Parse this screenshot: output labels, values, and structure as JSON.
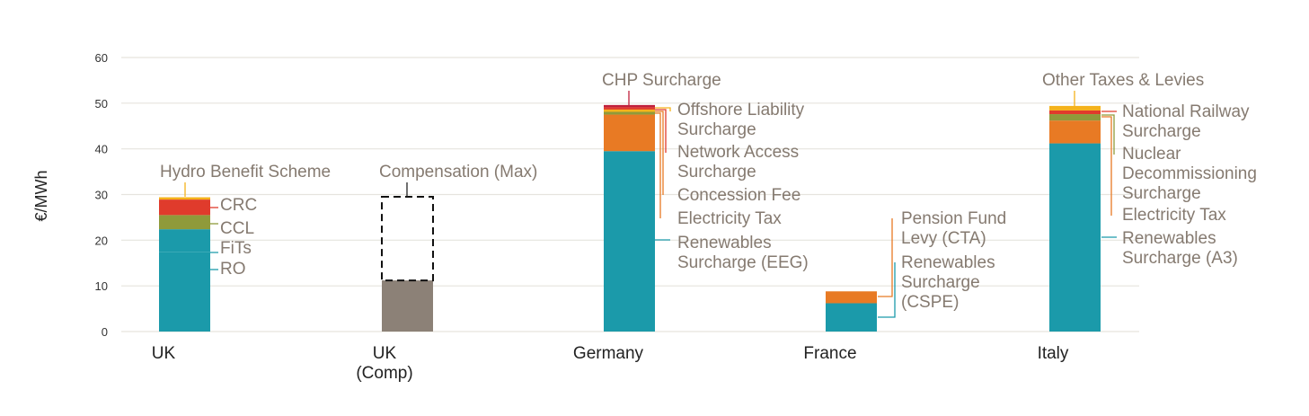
{
  "chart_data": {
    "type": "bar",
    "stacked": true,
    "ylabel": "€/MWh",
    "ylim": [
      0,
      60
    ],
    "yticks": [
      0,
      10,
      20,
      30,
      40,
      50,
      60
    ],
    "grid": true,
    "categories": [
      "UK",
      "UK\n(Comp)",
      "Germany",
      "France",
      "Italy"
    ],
    "colors": {
      "teal": "#1b9aaa",
      "orange": "#e87a24",
      "olive": "#8f9a3a",
      "red": "#e03b2c",
      "yellow": "#f5b21b",
      "gray": "#8c8177",
      "crimson": "#c0203c",
      "grid": "#e6e4de",
      "label": "#857a70"
    },
    "bars": [
      {
        "category": "UK",
        "segments": [
          {
            "name": "RO",
            "value": 17.4,
            "color": "teal"
          },
          {
            "name": "FiTs",
            "value": 5.0,
            "color": "teal"
          },
          {
            "name": "CCL",
            "value": 3.1,
            "color": "olive"
          },
          {
            "name": "CRC",
            "value": 3.4,
            "color": "red"
          },
          {
            "name": "Hydro Benefit Scheme",
            "value": 0.5,
            "color": "yellow"
          }
        ]
      },
      {
        "category": "UK\n(Comp)",
        "segments": [
          {
            "name": "",
            "value": 11.2,
            "color": "gray"
          }
        ],
        "dashed_box": {
          "name": "Compensation (Max)",
          "from": 11.2,
          "to": 29.5
        }
      },
      {
        "category": "Germany",
        "segments": [
          {
            "name": "Renewables Surcharge (EEG)",
            "value": 39.5,
            "color": "teal"
          },
          {
            "name": "Electricity Tax",
            "value": 8.0,
            "color": "orange"
          },
          {
            "name": "Concession Fee",
            "value": 0.6,
            "color": "olive"
          },
          {
            "name": "Network Access Surcharge",
            "value": 0.5,
            "color": "yellow"
          },
          {
            "name": "Offshore Liability Surcharge",
            "value": 0.5,
            "color": "red"
          },
          {
            "name": "CHP Surcharge",
            "value": 0.5,
            "color": "crimson"
          }
        ]
      },
      {
        "category": "France",
        "segments": [
          {
            "name": "Renewables Surcharge (CSPE)",
            "value": 6.2,
            "color": "teal"
          },
          {
            "name": "Pension Fund Levy (CTA)",
            "value": 2.6,
            "color": "orange"
          }
        ]
      },
      {
        "category": "Italy",
        "segments": [
          {
            "name": "Renewables Surcharge (A3)",
            "value": 41.2,
            "color": "teal"
          },
          {
            "name": "Electricity Tax",
            "value": 5.0,
            "color": "orange"
          },
          {
            "name": "Nuclear Decommissioning Surcharge",
            "value": 1.4,
            "color": "olive"
          },
          {
            "name": "National Railway Surcharge",
            "value": 0.8,
            "color": "red"
          },
          {
            "name": "Other Taxes & Levies",
            "value": 1.0,
            "color": "yellow"
          }
        ]
      }
    ],
    "annotations": [
      {
        "bar": 0,
        "lines": [
          "Hydro Benefit Scheme"
        ],
        "color": "yellow"
      },
      {
        "bar": 0,
        "lines": [
          "CRC"
        ],
        "color": "red"
      },
      {
        "bar": 0,
        "lines": [
          "CCL"
        ],
        "color": "olive"
      },
      {
        "bar": 0,
        "lines": [
          "FiTs"
        ],
        "color": "teal"
      },
      {
        "bar": 0,
        "lines": [
          "RO"
        ],
        "color": "teal"
      },
      {
        "bar": 1,
        "lines": [
          "Compensation (Max)"
        ],
        "color": "#222222"
      },
      {
        "bar": 2,
        "lines": [
          "CHP Surcharge"
        ],
        "color": "crimson"
      },
      {
        "bar": 2,
        "lines": [
          "Offshore Liability",
          "Surcharge"
        ],
        "color": "yellow"
      },
      {
        "bar": 2,
        "lines": [
          "Network Access",
          "Surcharge"
        ],
        "color": "red"
      },
      {
        "bar": 2,
        "lines": [
          "Concession Fee"
        ],
        "color": "orange"
      },
      {
        "bar": 2,
        "lines": [
          "Electricity Tax"
        ],
        "color": "orange"
      },
      {
        "bar": 2,
        "lines": [
          "Renewables",
          "Surcharge (EEG)"
        ],
        "color": "teal"
      },
      {
        "bar": 3,
        "lines": [
          "Pension Fund",
          "Levy (CTA)"
        ],
        "color": "orange"
      },
      {
        "bar": 3,
        "lines": [
          "Renewables",
          "Surcharge",
          "(CSPE)"
        ],
        "color": "teal"
      },
      {
        "bar": 4,
        "lines": [
          "Other Taxes & Levies"
        ],
        "color": "yellow"
      },
      {
        "bar": 4,
        "lines": [
          "National Railway",
          "Surcharge"
        ],
        "color": "red"
      },
      {
        "bar": 4,
        "lines": [
          "Nuclear",
          "Decommissioning",
          "Surcharge"
        ],
        "color": "olive"
      },
      {
        "bar": 4,
        "lines": [
          "Electricity Tax"
        ],
        "color": "orange"
      },
      {
        "bar": 4,
        "lines": [
          "Renewables",
          "Surcharge (A3)"
        ],
        "color": "teal"
      }
    ]
  }
}
